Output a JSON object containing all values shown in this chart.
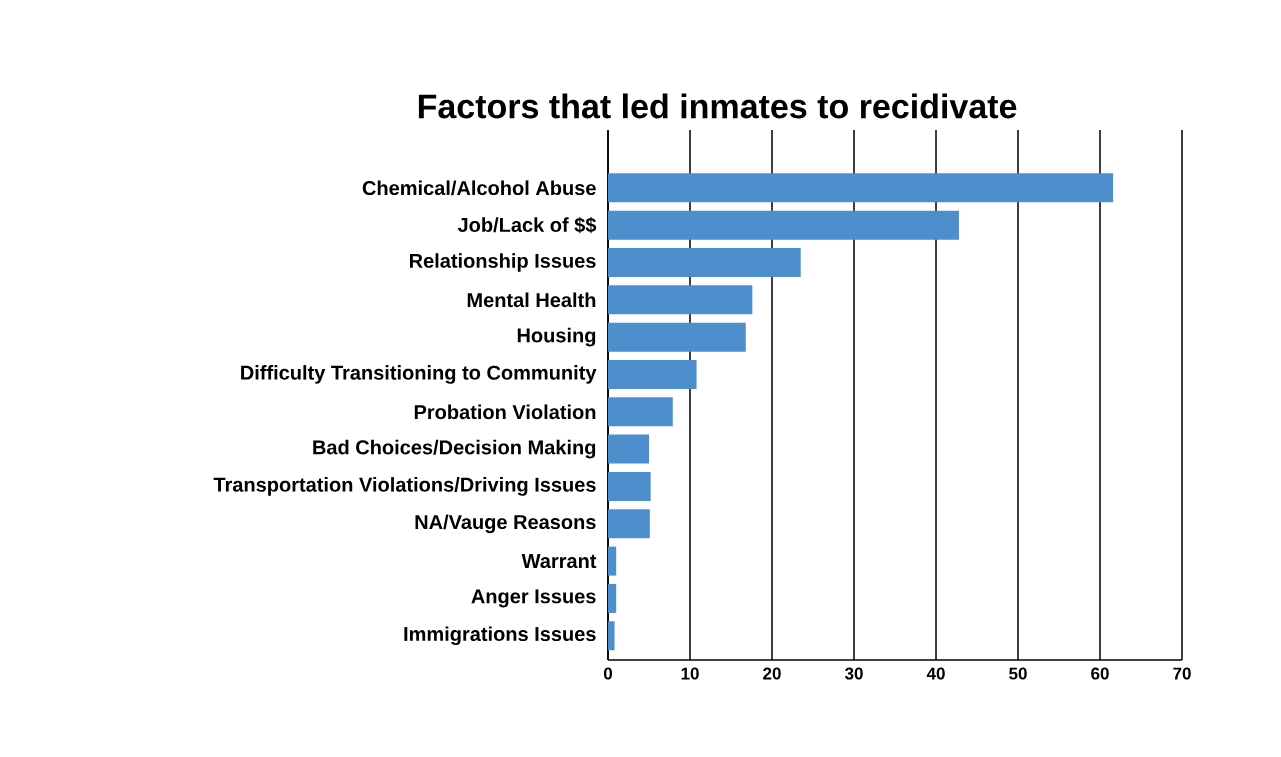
{
  "chart_data": {
    "type": "bar",
    "orientation": "horizontal",
    "title": "Factors that led inmates to recidivate",
    "categories": [
      "Chemical/Alcohol Abuse",
      "Job/Lack of $$",
      "Relationship Issues",
      "Mental Health",
      "Housing",
      "Difficulty Transitioning to Community",
      "Probation Violation",
      "Bad Choices/Decision Making",
      "Transportation Violations/Driving Issues",
      "NA/Vauge Reasons",
      "Warrant",
      "Anger Issues",
      "Immigrations Issues"
    ],
    "values": [
      61.6,
      42.8,
      23.5,
      17.6,
      16.8,
      10.8,
      7.9,
      5.0,
      5.2,
      5.1,
      1.0,
      1.0,
      0.8
    ],
    "color": "#4d8fcc",
    "xlim": [
      0,
      70
    ],
    "xticks": [
      0,
      10,
      20,
      30,
      40,
      50,
      60,
      70
    ],
    "grid": "x"
  }
}
